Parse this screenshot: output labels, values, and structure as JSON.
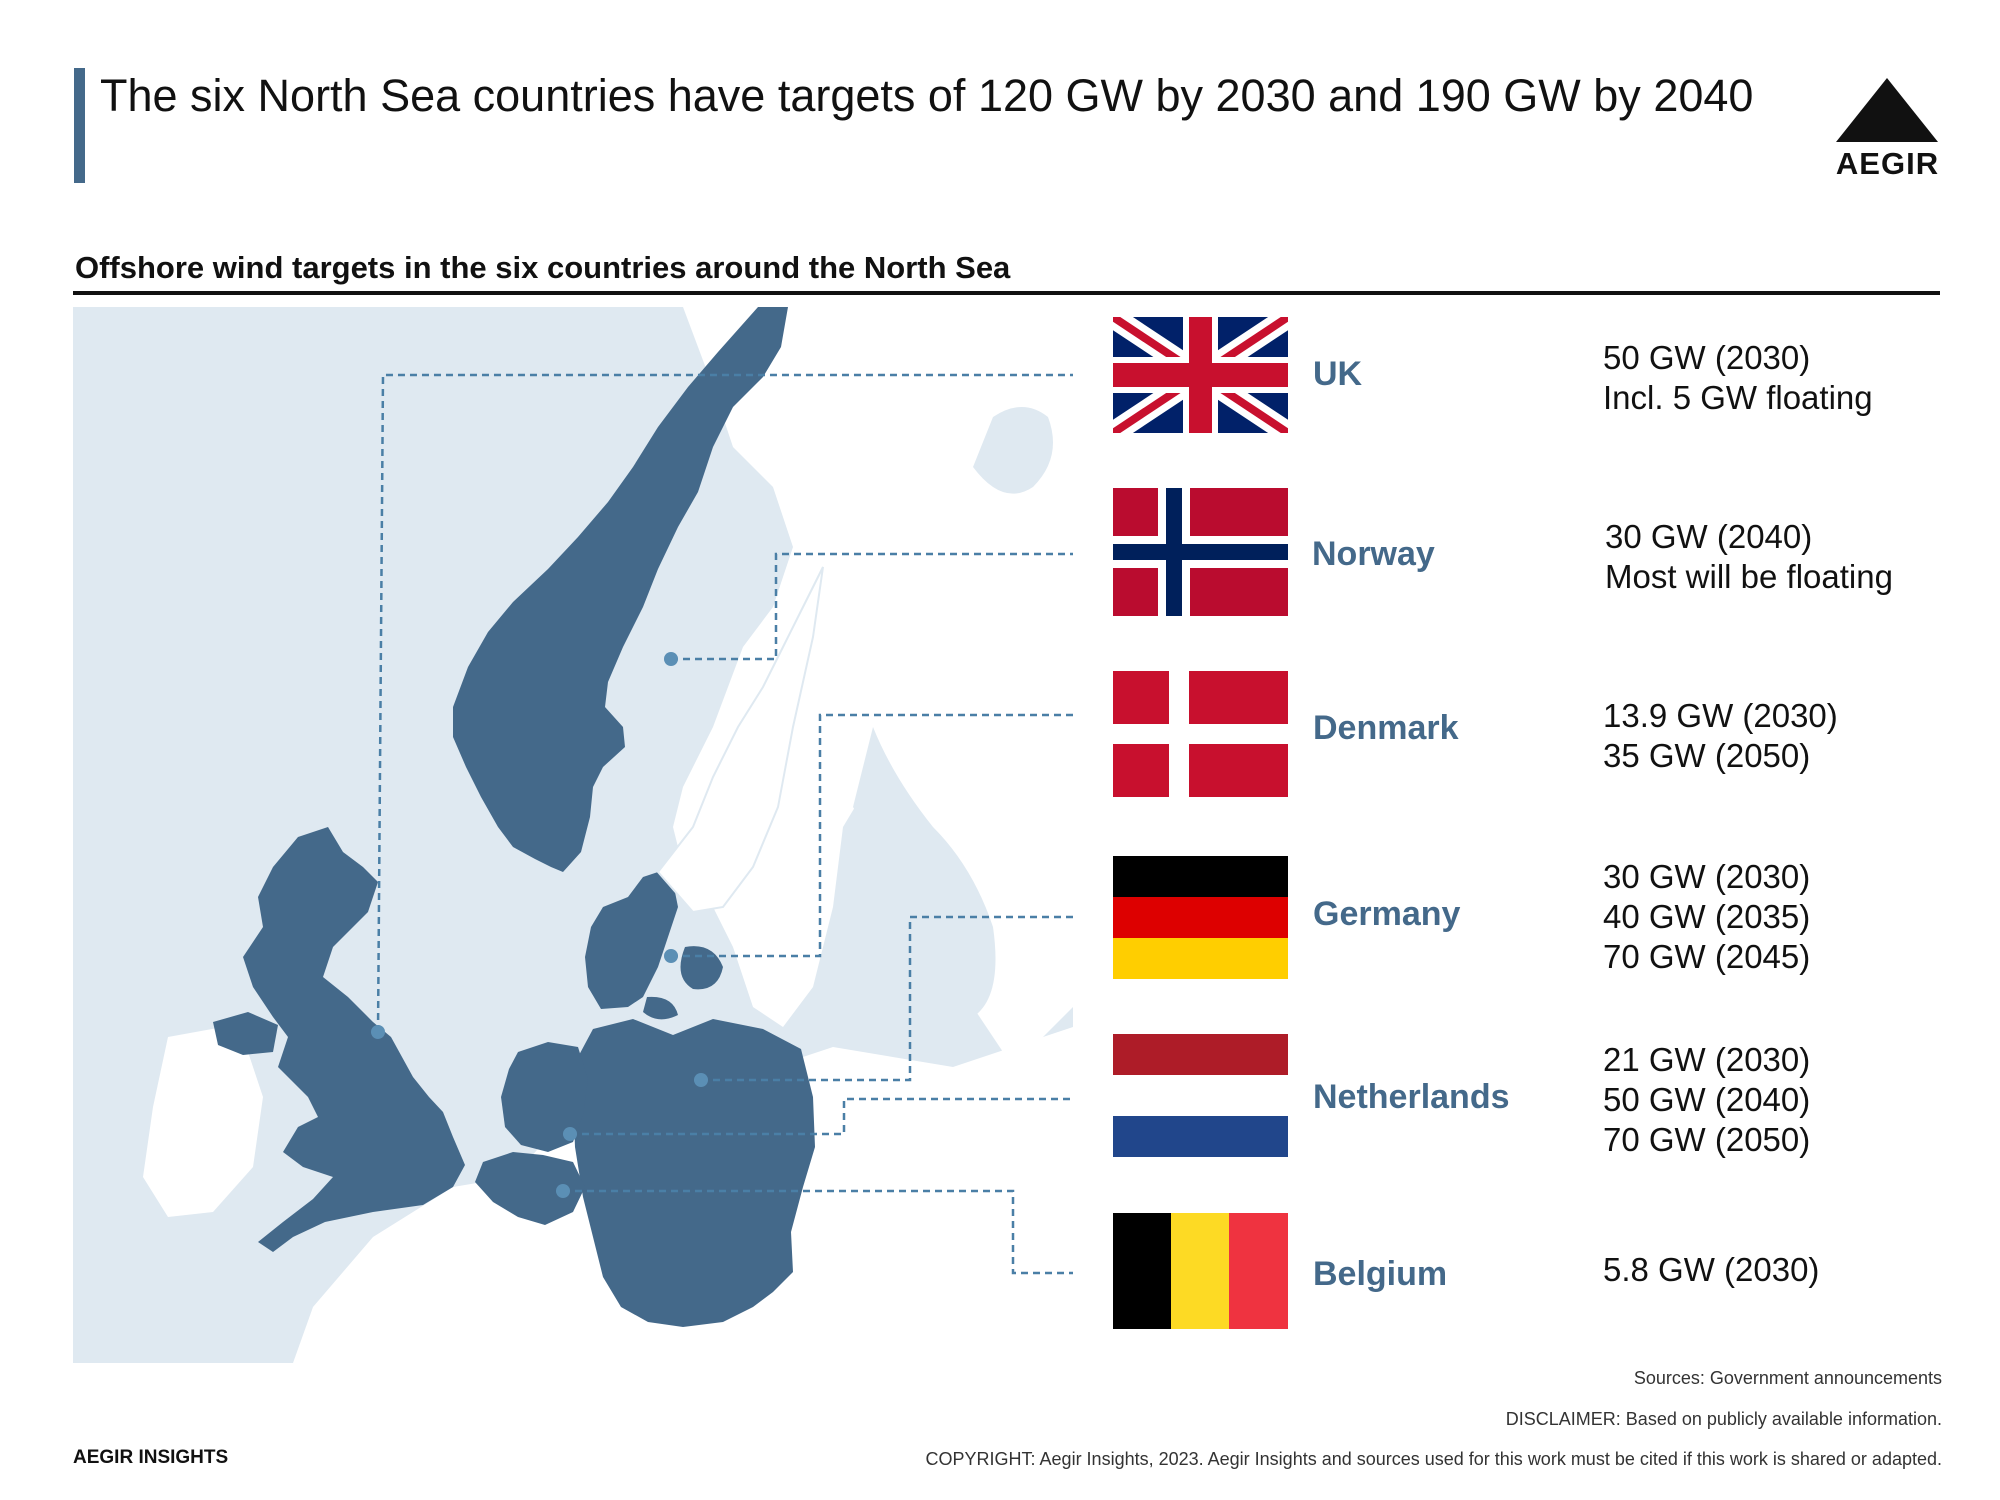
{
  "header": {
    "title": "The six North Sea countries have targets of 120 GW by 2030 and 190 GW by 2040",
    "logo_text": "AEGIR"
  },
  "subtitle": "Offshore wind targets in the six countries around the North Sea",
  "countries": [
    {
      "name": "UK",
      "flag": "uk-flag",
      "targets": [
        "50 GW (2030)",
        "Incl. 5 GW floating"
      ]
    },
    {
      "name": "Norway",
      "flag": "norway-flag",
      "targets": [
        "30 GW (2040)",
        "Most will be floating"
      ]
    },
    {
      "name": "Denmark",
      "flag": "denmark-flag",
      "targets": [
        "13.9 GW (2030)",
        "35 GW (2050)"
      ]
    },
    {
      "name": "Germany",
      "flag": "germany-flag",
      "targets": [
        "30 GW (2030)",
        "40 GW (2035)",
        "70 GW (2045)"
      ]
    },
    {
      "name": "Netherlands",
      "flag": "netherlands-flag",
      "targets": [
        "21 GW (2030)",
        "50 GW (2040)",
        "70 GW (2050)"
      ]
    },
    {
      "name": "Belgium",
      "flag": "belgium-flag",
      "targets": [
        "5.8 GW (2030)"
      ]
    }
  ],
  "colors": {
    "accent": "#44698a",
    "land_highlight": "#44698a",
    "sea": "#dfe9f1",
    "land_other": "#ffffff",
    "connector": "#4a7fa6"
  },
  "footer": {
    "sources": "Sources: Government announcements",
    "disclaimer": "DISCLAIMER: Based on publicly available information.",
    "brand": "AEGIR INSIGHTS",
    "copyright": "COPYRIGHT: Aegir Insights, 2023. Aegir Insights and sources used for this work must be cited if this work is shared or adapted."
  }
}
